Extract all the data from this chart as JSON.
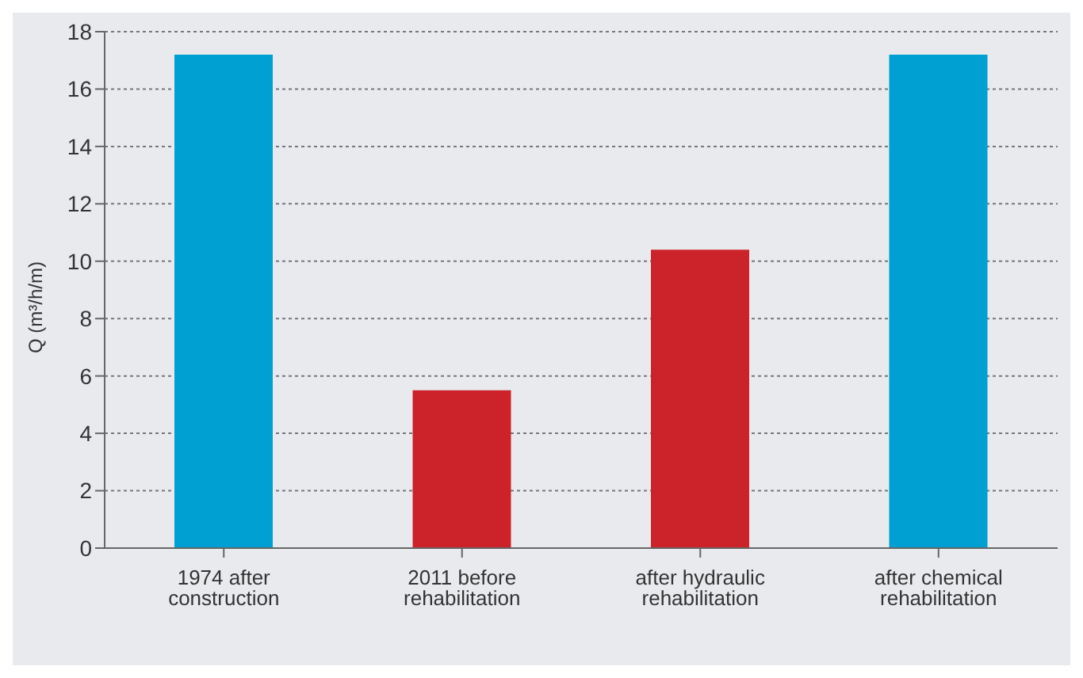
{
  "chart_data": {
    "type": "bar",
    "ylabel": "Q (m³/h/m)",
    "categories": [
      "1974 after construction",
      "2011 before rehabilitation",
      "after hydraulic rehabilitation",
      "after chemical rehabilitation"
    ],
    "values": [
      17.2,
      5.5,
      10.4,
      17.2
    ],
    "colors": [
      "#00a0d2",
      "#cc2229",
      "#cc2229",
      "#00a0d2"
    ],
    "ylim": [
      0,
      18
    ],
    "yticks": [
      0,
      2,
      4,
      6,
      8,
      10,
      12,
      14,
      16,
      18
    ],
    "grid": "y"
  }
}
